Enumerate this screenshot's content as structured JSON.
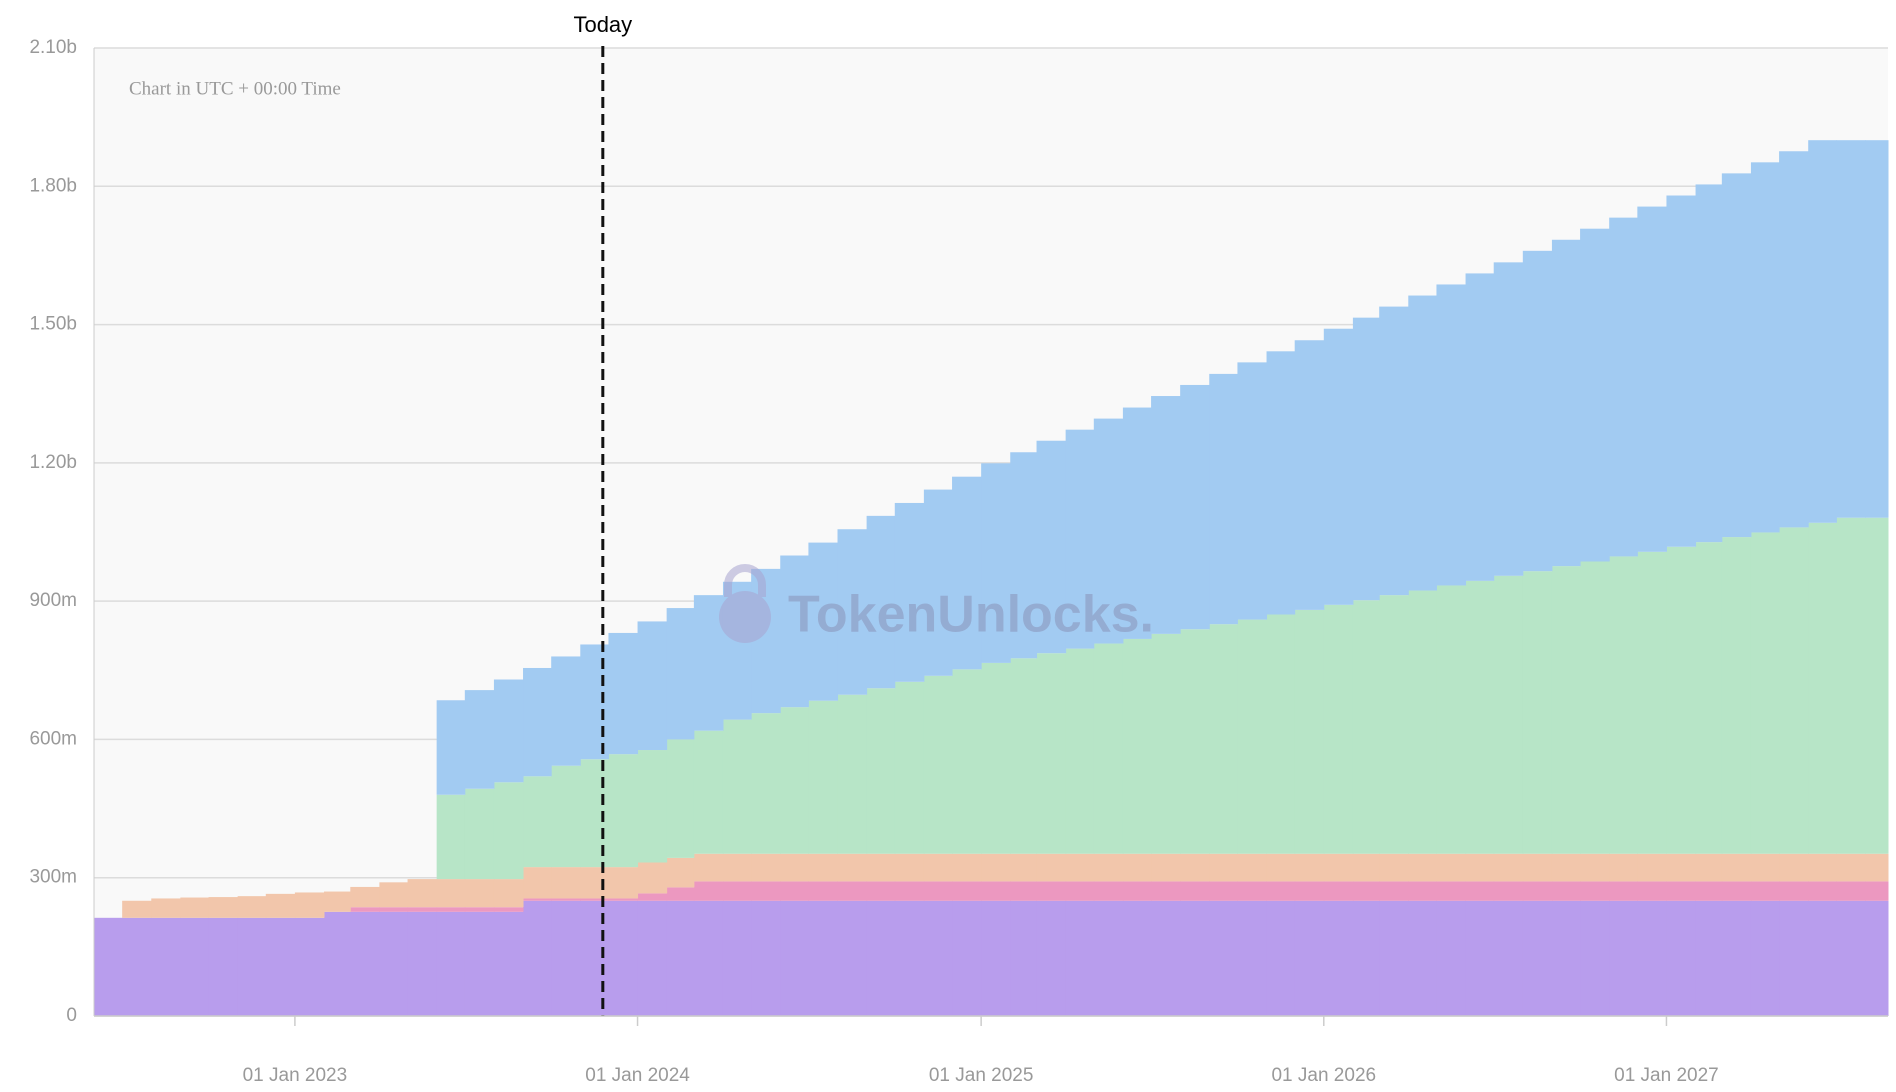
{
  "chart_data": {
    "type": "stacked-step-area",
    "note": "Chart in UTC + 00:00 Time",
    "watermark": "TokenUnlocks.",
    "annotation": {
      "text": "Today",
      "x": "2023-11-25"
    },
    "x": [
      "2022-06-01",
      "2022-07-01",
      "2022-08-01",
      "2022-09-01",
      "2022-10-01",
      "2022-11-01",
      "2022-12-01",
      "2023-01-01",
      "2023-02-01",
      "2023-03-01",
      "2023-04-01",
      "2023-05-01",
      "2023-06-01",
      "2023-07-01",
      "2023-08-01",
      "2023-09-01",
      "2023-10-01",
      "2023-11-01",
      "2023-12-01",
      "2024-01-01",
      "2024-02-01",
      "2024-03-01",
      "2024-04-01",
      "2024-05-01",
      "2024-06-01",
      "2024-07-01",
      "2024-08-01",
      "2024-09-01",
      "2024-10-01",
      "2024-11-01",
      "2024-12-01",
      "2025-01-01",
      "2025-02-01",
      "2025-03-01",
      "2025-04-01",
      "2025-05-01",
      "2025-06-01",
      "2025-07-01",
      "2025-08-01",
      "2025-09-01",
      "2025-10-01",
      "2025-11-01",
      "2025-12-01",
      "2026-01-01",
      "2026-02-01",
      "2026-03-01",
      "2026-04-01",
      "2026-05-01",
      "2026-06-01",
      "2026-07-01",
      "2026-08-01",
      "2026-09-01",
      "2026-10-01",
      "2026-11-01",
      "2026-12-01",
      "2027-01-01",
      "2027-02-01",
      "2027-03-01",
      "2027-04-01",
      "2027-05-01",
      "2027-06-01",
      "2027-07-01",
      "2027-08-01"
    ],
    "xlim": [
      "2022-06-01",
      "2027-08-25"
    ],
    "xticks": [
      {
        "value": "2023-01-01",
        "label": "01 Jan 2023"
      },
      {
        "value": "2024-01-01",
        "label": "01 Jan 2024"
      },
      {
        "value": "2025-01-01",
        "label": "01 Jan 2025"
      },
      {
        "value": "2026-01-01",
        "label": "01 Jan 2026"
      },
      {
        "value": "2027-01-01",
        "label": "01 Jan 2027"
      }
    ],
    "ylim": [
      0,
      2100
    ],
    "yticks": [
      0,
      {
        "value": 300,
        "label": "300m"
      },
      {
        "value": 600,
        "label": "600m"
      },
      {
        "value": 900,
        "label": "900m"
      },
      {
        "value": 1200,
        "label": "1.20b"
      },
      {
        "value": 1500,
        "label": "1.50b"
      },
      {
        "value": 1800,
        "label": "1.80b"
      },
      {
        "value": 2100,
        "label": "2.10b"
      }
    ],
    "grid": true,
    "series": [
      {
        "color": "#b89ded",
        "values": [
          213,
          213,
          213,
          213,
          213,
          213,
          213,
          213,
          226,
          226,
          226,
          226,
          226,
          226,
          226,
          250,
          250,
          250,
          250,
          250,
          250,
          250,
          250,
          250,
          250,
          250,
          250,
          250,
          250,
          250,
          250,
          250,
          250,
          250,
          250,
          250,
          250,
          250,
          250,
          250,
          250,
          250,
          250,
          250,
          250,
          250,
          250,
          250,
          250,
          250,
          250,
          250,
          250,
          250,
          250,
          250,
          250,
          250,
          250,
          250,
          250,
          250,
          250
        ]
      },
      {
        "color": "#ec98c0",
        "values": [
          0,
          0,
          0,
          0,
          0,
          0,
          0,
          0,
          0,
          10,
          10,
          10,
          10,
          10,
          10,
          5,
          5,
          5,
          5,
          16,
          29,
          42,
          42,
          42,
          42,
          42,
          42,
          42,
          42,
          42,
          42,
          42,
          42,
          42,
          42,
          42,
          42,
          42,
          42,
          42,
          42,
          42,
          42,
          42,
          42,
          42,
          42,
          42,
          42,
          42,
          42,
          42,
          42,
          42,
          42,
          42,
          42,
          42,
          42,
          42,
          42,
          42,
          42
        ]
      },
      {
        "color": "#f2c6ab",
        "values": [
          0,
          37,
          42,
          44,
          45,
          47,
          52,
          55,
          44,
          44,
          54,
          61,
          61,
          61,
          61,
          68,
          68,
          68,
          68,
          67,
          64,
          60,
          60,
          60,
          60,
          60,
          60,
          60,
          60,
          60,
          60,
          60,
          60,
          60,
          60,
          60,
          60,
          60,
          60,
          60,
          60,
          60,
          60,
          60,
          60,
          60,
          60,
          60,
          60,
          60,
          60,
          60,
          60,
          60,
          60,
          60,
          60,
          60,
          60,
          60,
          60,
          60,
          60
        ]
      },
      {
        "color": "#b7e5c7",
        "values": [
          0,
          0,
          0,
          0,
          0,
          0,
          0,
          0,
          0,
          0,
          0,
          0,
          183,
          196,
          210,
          197,
          220,
          234,
          245,
          244,
          257,
          267,
          291,
          305,
          318,
          332,
          345,
          359,
          373,
          386,
          400,
          414,
          424,
          435,
          445,
          456,
          466,
          477,
          487,
          498,
          508,
          519,
          529,
          540,
          550,
          561,
          571,
          582,
          592,
          603,
          613,
          624,
          634,
          645,
          655,
          666,
          676,
          687,
          697,
          708,
          718,
          729,
          729
        ]
      },
      {
        "color": "#a2cbf2",
        "values": [
          0,
          0,
          0,
          0,
          0,
          0,
          0,
          0,
          0,
          0,
          0,
          0,
          205,
          214,
          223,
          235,
          237,
          249,
          263,
          279,
          285,
          294,
          299,
          313,
          329,
          343,
          359,
          374,
          388,
          404,
          418,
          433,
          447,
          461,
          475,
          488,
          502,
          516,
          530,
          543,
          558,
          571,
          585,
          599,
          613,
          626,
          640,
          653,
          667,
          680,
          695,
          708,
          722,
          735,
          749,
          762,
          776,
          789,
          803,
          816,
          830,
          819,
          819
        ]
      }
    ]
  }
}
